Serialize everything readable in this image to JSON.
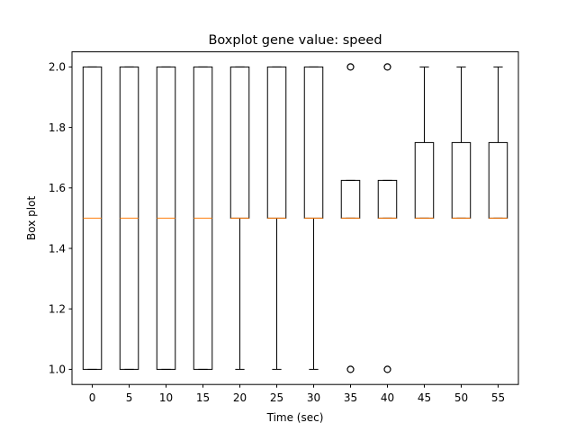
{
  "chart_data": {
    "type": "boxplot",
    "title": "Boxplot gene value: speed",
    "xlabel": "Time (sec)",
    "ylabel": "Box plot",
    "ylim": [
      0.95,
      2.05
    ],
    "yticks": [
      1.0,
      1.2,
      1.4,
      1.6,
      1.8,
      2.0
    ],
    "ytick_labels": [
      "1.0",
      "1.2",
      "1.4",
      "1.6",
      "1.8",
      "2.0"
    ],
    "categories": [
      "0",
      "5",
      "10",
      "15",
      "20",
      "25",
      "30",
      "35",
      "40",
      "45",
      "50",
      "55"
    ],
    "boxes": [
      {
        "whislo": 1.0,
        "q1": 1.0,
        "med": 1.5,
        "q3": 2.0,
        "whishi": 2.0,
        "fliers": []
      },
      {
        "whislo": 1.0,
        "q1": 1.0,
        "med": 1.5,
        "q3": 2.0,
        "whishi": 2.0,
        "fliers": []
      },
      {
        "whislo": 1.0,
        "q1": 1.0,
        "med": 1.5,
        "q3": 2.0,
        "whishi": 2.0,
        "fliers": []
      },
      {
        "whislo": 1.0,
        "q1": 1.0,
        "med": 1.5,
        "q3": 2.0,
        "whishi": 2.0,
        "fliers": []
      },
      {
        "whislo": 1.0,
        "q1": 1.5,
        "med": 1.5,
        "q3": 2.0,
        "whishi": 2.0,
        "fliers": []
      },
      {
        "whislo": 1.0,
        "q1": 1.5,
        "med": 1.5,
        "q3": 2.0,
        "whishi": 2.0,
        "fliers": []
      },
      {
        "whislo": 1.0,
        "q1": 1.5,
        "med": 1.5,
        "q3": 2.0,
        "whishi": 2.0,
        "fliers": []
      },
      {
        "whislo": 1.5,
        "q1": 1.5,
        "med": 1.5,
        "q3": 1.625,
        "whishi": 1.625,
        "fliers": [
          1.0,
          2.0
        ]
      },
      {
        "whislo": 1.5,
        "q1": 1.5,
        "med": 1.5,
        "q3": 1.625,
        "whishi": 1.625,
        "fliers": [
          1.0,
          2.0
        ]
      },
      {
        "whislo": 1.5,
        "q1": 1.5,
        "med": 1.5,
        "q3": 1.75,
        "whishi": 2.0,
        "fliers": []
      },
      {
        "whislo": 1.5,
        "q1": 1.5,
        "med": 1.5,
        "q3": 1.75,
        "whishi": 2.0,
        "fliers": []
      },
      {
        "whislo": 1.5,
        "q1": 1.5,
        "med": 1.5,
        "q3": 1.75,
        "whishi": 2.0,
        "fliers": []
      }
    ],
    "grid": false,
    "colors": {
      "box": "#000000",
      "median": "#ff7f0e",
      "flier": "#000000"
    }
  }
}
